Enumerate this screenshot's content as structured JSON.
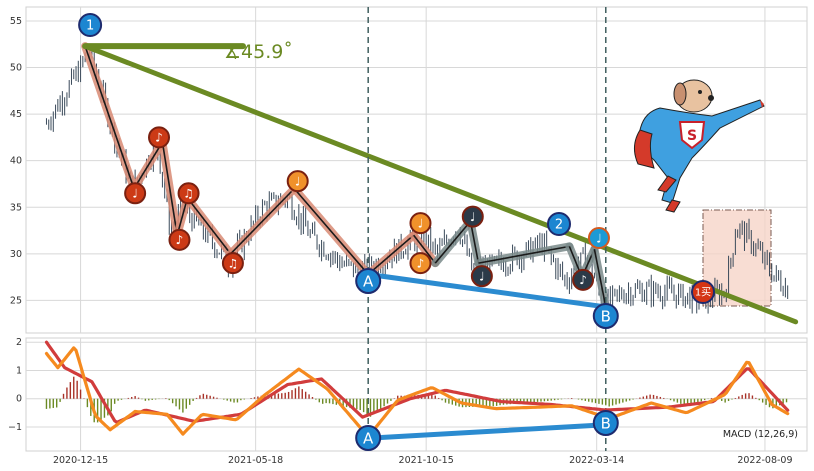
{
  "chart_data": [
    {
      "type": "line",
      "panel": "price",
      "ylim": [
        21.5,
        56.5
      ],
      "yticks": [
        25,
        30,
        35,
        40,
        45,
        50,
        55
      ],
      "grid": true,
      "angle_annotation": "∡45.9˚",
      "marker_start_label": "1",
      "marker_mid_label": "2",
      "marker_buy_label": "1买",
      "divergence_labels": [
        "A",
        "B"
      ],
      "note_glyphs": [
        "♩",
        "♪",
        "♫"
      ],
      "price_points": [
        {
          "x": "2020-11-15",
          "y": 44
        },
        {
          "x": "2020-11-25",
          "y": 46
        },
        {
          "x": "2020-12-05",
          "y": 48
        },
        {
          "x": "2020-12-15",
          "y": 50
        },
        {
          "x": "2020-12-22",
          "y": 52
        },
        {
          "x": "2021-01-01",
          "y": 48
        },
        {
          "x": "2021-01-15",
          "y": 42
        },
        {
          "x": "2021-01-30",
          "y": 37
        },
        {
          "x": "2021-02-20",
          "y": 42
        },
        {
          "x": "2021-03-05",
          "y": 32
        },
        {
          "x": "2021-03-15",
          "y": 35
        },
        {
          "x": "2021-04-05",
          "y": 32
        },
        {
          "x": "2021-04-25",
          "y": 29
        },
        {
          "x": "2021-05-25",
          "y": 35
        },
        {
          "x": "2021-06-15",
          "y": 36
        },
        {
          "x": "2021-07-05",
          "y": 32
        },
        {
          "x": "2021-08-01",
          "y": 29
        },
        {
          "x": "2021-08-20",
          "y": 28
        },
        {
          "x": "2021-09-15",
          "y": 30
        },
        {
          "x": "2021-10-10",
          "y": 32
        },
        {
          "x": "2021-10-25",
          "y": 30
        },
        {
          "x": "2021-11-12",
          "y": 33
        },
        {
          "x": "2021-11-25",
          "y": 28
        },
        {
          "x": "2021-12-20",
          "y": 29
        },
        {
          "x": "2022-01-25",
          "y": 31
        },
        {
          "x": "2022-02-15",
          "y": 27
        },
        {
          "x": "2022-03-05",
          "y": 30
        },
        {
          "x": "2022-03-20",
          "y": 24.5
        },
        {
          "x": "2022-04-10",
          "y": 26
        },
        {
          "x": "2022-05-10",
          "y": 26
        },
        {
          "x": "2022-06-15",
          "y": 25
        },
        {
          "x": "2022-07-05",
          "y": 26
        },
        {
          "x": "2022-07-15",
          "y": 33
        },
        {
          "x": "2022-07-30",
          "y": 31
        },
        {
          "x": "2022-08-15",
          "y": 28
        },
        {
          "x": "2022-08-30",
          "y": 26
        }
      ],
      "stroke_segments": [
        {
          "x": "2020-12-19",
          "y": 52.3
        },
        {
          "x": "2021-01-31",
          "y": 37.0
        },
        {
          "x": "2021-02-25",
          "y": 42.0
        },
        {
          "x": "2021-03-10",
          "y": 32.0
        },
        {
          "x": "2021-03-19",
          "y": 36.0
        },
        {
          "x": "2021-04-26",
          "y": 30.0
        },
        {
          "x": "2021-06-21",
          "y": 37.0
        },
        {
          "x": "2021-08-25",
          "y": 27.8
        },
        {
          "x": "2021-10-04",
          "y": 32.0
        },
        {
          "x": "2021-10-23",
          "y": 29.0
        },
        {
          "x": "2021-11-23",
          "y": 33.5
        },
        {
          "x": "2021-11-30",
          "y": 29.0
        },
        {
          "x": "2022-02-18",
          "y": 30.8
        },
        {
          "x": "2022-03-01",
          "y": 27.5
        },
        {
          "x": "2022-03-12",
          "y": 30.5
        },
        {
          "x": "2022-03-22",
          "y": 24.3
        }
      ],
      "note_markers": [
        {
          "x": "2021-02-01",
          "y": 36.5,
          "glyph": "♩",
          "color": "#cc3a16"
        },
        {
          "x": "2021-02-22",
          "y": 42.5,
          "glyph": "♪",
          "color": "#cc3a16"
        },
        {
          "x": "2021-03-12",
          "y": 31.5,
          "glyph": "♪",
          "color": "#cc3a16"
        },
        {
          "x": "2021-03-20",
          "y": 36.5,
          "glyph": "♫",
          "color": "#cc3a16"
        },
        {
          "x": "2021-04-28",
          "y": 29.0,
          "glyph": "♫",
          "color": "#cc3a16"
        },
        {
          "x": "2021-06-24",
          "y": 37.8,
          "glyph": "♩",
          "color": "#f0912b"
        },
        {
          "x": "2021-10-10",
          "y": 33.3,
          "glyph": "♩",
          "color": "#f0912b"
        },
        {
          "x": "2021-10-10",
          "y": 29.0,
          "glyph": "♪",
          "color": "#f0912b"
        },
        {
          "x": "2021-11-25",
          "y": 34.0,
          "glyph": "♩",
          "color": "#2b3a48"
        },
        {
          "x": "2021-12-03",
          "y": 27.6,
          "glyph": "♩",
          "color": "#2b3a48"
        },
        {
          "x": "2022-03-02",
          "y": 27.2,
          "glyph": "♪",
          "color": "#2b3a48"
        },
        {
          "x": "2022-03-16",
          "y": 31.7,
          "glyph": "♩",
          "color": "#1c9ad6"
        }
      ],
      "resistance_line": [
        {
          "x": "2020-12-19",
          "y": 52.3
        },
        {
          "x": "2022-09-05",
          "y": 22.7
        }
      ],
      "support_line": [
        {
          "x": "2021-08-25",
          "y": 27.8
        },
        {
          "x": "2022-03-22",
          "y": 24.3
        }
      ],
      "vertical_lines": [
        "2021-08-25",
        "2022-03-22"
      ],
      "colors": {
        "resistance": "#6b8a23",
        "support": "#2b8bd0",
        "stroke_red": "#d98a74",
        "stroke_gray": "#7a8a8a",
        "marker_blue": "#1c86d1",
        "marker_red": "#d43414"
      }
    },
    {
      "type": "line",
      "panel": "macd",
      "label": "MACD (12,26,9)",
      "ylim": [
        -1.85,
        2.15
      ],
      "yticks": [
        -1,
        0,
        1,
        2
      ],
      "dif": [
        {
          "x": "2020-11-15",
          "y": 1.6
        },
        {
          "x": "2020-11-25",
          "y": 1.1
        },
        {
          "x": "2020-12-10",
          "y": 1.85
        },
        {
          "x": "2020-12-28",
          "y": -0.6
        },
        {
          "x": "2021-01-10",
          "y": -1.1
        },
        {
          "x": "2021-02-01",
          "y": -0.45
        },
        {
          "x": "2021-03-01",
          "y": -0.55
        },
        {
          "x": "2021-03-15",
          "y": -1.25
        },
        {
          "x": "2021-04-01",
          "y": -0.55
        },
        {
          "x": "2021-05-01",
          "y": -0.75
        },
        {
          "x": "2021-05-25",
          "y": 0.1
        },
        {
          "x": "2021-06-25",
          "y": 1.05
        },
        {
          "x": "2021-07-20",
          "y": 0.35
        },
        {
          "x": "2021-08-25",
          "y": -1.35
        },
        {
          "x": "2021-09-20",
          "y": -0.05
        },
        {
          "x": "2021-10-20",
          "y": 0.4
        },
        {
          "x": "2021-11-15",
          "y": -0.15
        },
        {
          "x": "2021-12-15",
          "y": -0.35
        },
        {
          "x": "2022-01-20",
          "y": -0.3
        },
        {
          "x": "2022-02-20",
          "y": -0.25
        },
        {
          "x": "2022-03-25",
          "y": -0.7
        },
        {
          "x": "2022-05-01",
          "y": -0.15
        },
        {
          "x": "2022-06-01",
          "y": -0.5
        },
        {
          "x": "2022-07-05",
          "y": 0.15
        },
        {
          "x": "2022-07-25",
          "y": 1.35
        },
        {
          "x": "2022-08-15",
          "y": -0.2
        },
        {
          "x": "2022-08-30",
          "y": -0.55
        }
      ],
      "dea": [
        {
          "x": "2020-11-15",
          "y": 2.0
        },
        {
          "x": "2020-12-01",
          "y": 1.1
        },
        {
          "x": "2020-12-25",
          "y": 0.6
        },
        {
          "x": "2021-01-15",
          "y": -0.85
        },
        {
          "x": "2021-02-10",
          "y": -0.4
        },
        {
          "x": "2021-03-25",
          "y": -0.8
        },
        {
          "x": "2021-05-05",
          "y": -0.55
        },
        {
          "x": "2021-06-15",
          "y": 0.5
        },
        {
          "x": "2021-07-15",
          "y": 0.7
        },
        {
          "x": "2021-08-20",
          "y": -0.65
        },
        {
          "x": "2021-10-01",
          "y": 0.0
        },
        {
          "x": "2021-11-01",
          "y": 0.3
        },
        {
          "x": "2021-12-20",
          "y": -0.1
        },
        {
          "x": "2022-02-01",
          "y": -0.2
        },
        {
          "x": "2022-03-22",
          "y": -0.4
        },
        {
          "x": "2022-05-15",
          "y": -0.3
        },
        {
          "x": "2022-06-25",
          "y": -0.1
        },
        {
          "x": "2022-07-25",
          "y": 1.1
        },
        {
          "x": "2022-08-30",
          "y": -0.45
        }
      ],
      "divergence_line": [
        {
          "x": "2021-08-25",
          "y": -1.4
        },
        {
          "x": "2022-03-22",
          "y": -0.92
        }
      ],
      "colors": {
        "dif": "#f58a1f",
        "dea": "#d13c3c",
        "hist_pos": "#a83228",
        "hist_neg": "#6b8a23",
        "divergence": "#2b8bd0"
      }
    }
  ],
  "x_axis": {
    "domain": [
      "2020-10-28",
      "2022-09-15"
    ],
    "ticks": [
      "2020-12-15",
      "2021-05-18",
      "2021-10-15",
      "2022-03-14",
      "2022-08-09"
    ]
  }
}
